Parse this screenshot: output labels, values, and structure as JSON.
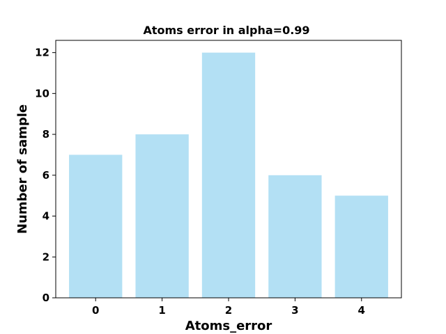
{
  "chart_data": {
    "type": "bar",
    "title": "Atoms error in alpha=0.99",
    "xlabel": "Atoms_error",
    "ylabel": "Number of sample",
    "categories": [
      "0",
      "1",
      "2",
      "3",
      "4"
    ],
    "values": [
      7,
      8,
      12,
      6,
      5
    ],
    "ylim": [
      0,
      12.6
    ],
    "yticks": [
      "0",
      "2",
      "4",
      "6",
      "8",
      "10",
      "12"
    ],
    "grid": false,
    "legend": "none",
    "bar_color": "#b3e0f4"
  }
}
